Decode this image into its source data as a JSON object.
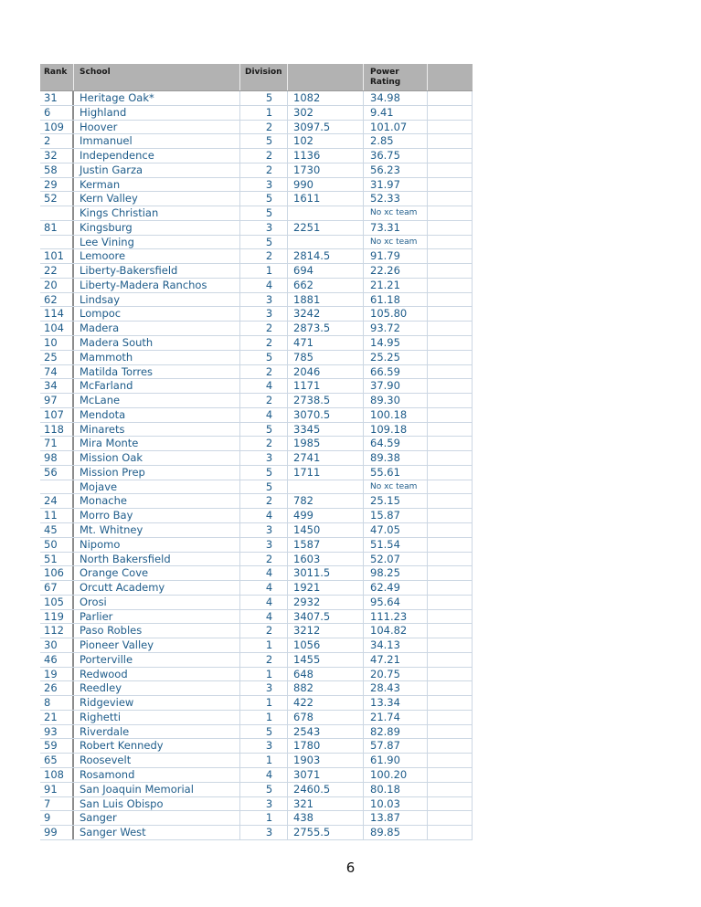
{
  "document": {
    "page_number": "6"
  },
  "colors": {
    "header_bg": "#b2b2b2",
    "header_text": "#1a1a1a",
    "data_text": "#1e5c8a",
    "grid_line": "#ccd7e3",
    "rank_divider": "#8c8c8c"
  },
  "table": {
    "headers": {
      "rank": "Rank",
      "school": "School",
      "division": "Division",
      "points": "",
      "power_rating": "Power Rating",
      "extra": ""
    },
    "no_team_text": "No xc team",
    "rows": [
      {
        "rank": "31",
        "school": "Heritage Oak*",
        "division": "5",
        "points": "1082",
        "rating": "34.98"
      },
      {
        "rank": "6",
        "school": "Highland",
        "division": "1",
        "points": "302",
        "rating": "9.41"
      },
      {
        "rank": "109",
        "school": "Hoover",
        "division": "2",
        "points": "3097.5",
        "rating": "101.07"
      },
      {
        "rank": "2",
        "school": "Immanuel",
        "division": "5",
        "points": "102",
        "rating": "2.85"
      },
      {
        "rank": "32",
        "school": "Independence",
        "division": "2",
        "points": "1136",
        "rating": "36.75"
      },
      {
        "rank": "58",
        "school": "Justin Garza",
        "division": "2",
        "points": "1730",
        "rating": "56.23"
      },
      {
        "rank": "29",
        "school": "Kerman",
        "division": "3",
        "points": "990",
        "rating": "31.97"
      },
      {
        "rank": "52",
        "school": "Kern Valley",
        "division": "5",
        "points": "1611",
        "rating": "52.33"
      },
      {
        "rank": "",
        "school": "Kings Christian",
        "division": "5",
        "points": "",
        "rating": "No xc team"
      },
      {
        "rank": "81",
        "school": "Kingsburg",
        "division": "3",
        "points": "2251",
        "rating": "73.31"
      },
      {
        "rank": "",
        "school": "Lee Vining",
        "division": "5",
        "points": "",
        "rating": "No xc team"
      },
      {
        "rank": "101",
        "school": "Lemoore",
        "division": "2",
        "points": "2814.5",
        "rating": "91.79"
      },
      {
        "rank": "22",
        "school": "Liberty-Bakersfield",
        "division": "1",
        "points": "694",
        "rating": "22.26"
      },
      {
        "rank": "20",
        "school": "Liberty-Madera Ranchos",
        "division": "4",
        "points": "662",
        "rating": "21.21"
      },
      {
        "rank": "62",
        "school": "Lindsay",
        "division": "3",
        "points": "1881",
        "rating": "61.18"
      },
      {
        "rank": "114",
        "school": "Lompoc",
        "division": "3",
        "points": "3242",
        "rating": "105.80"
      },
      {
        "rank": "104",
        "school": "Madera",
        "division": "2",
        "points": "2873.5",
        "rating": "93.72"
      },
      {
        "rank": "10",
        "school": "Madera South",
        "division": "2",
        "points": "471",
        "rating": "14.95"
      },
      {
        "rank": "25",
        "school": "Mammoth",
        "division": "5",
        "points": "785",
        "rating": "25.25"
      },
      {
        "rank": "74",
        "school": "Matilda Torres",
        "division": "2",
        "points": "2046",
        "rating": "66.59"
      },
      {
        "rank": "34",
        "school": "McFarland",
        "division": "4",
        "points": "1171",
        "rating": "37.90"
      },
      {
        "rank": "97",
        "school": "McLane",
        "division": "2",
        "points": "2738.5",
        "rating": "89.30"
      },
      {
        "rank": "107",
        "school": "Mendota",
        "division": "4",
        "points": "3070.5",
        "rating": "100.18"
      },
      {
        "rank": "118",
        "school": "Minarets",
        "division": "5",
        "points": "3345",
        "rating": "109.18"
      },
      {
        "rank": "71",
        "school": "Mira Monte",
        "division": "2",
        "points": "1985",
        "rating": "64.59"
      },
      {
        "rank": "98",
        "school": "Mission Oak",
        "division": "3",
        "points": "2741",
        "rating": "89.38"
      },
      {
        "rank": "56",
        "school": "Mission Prep",
        "division": "5",
        "points": "1711",
        "rating": "55.61"
      },
      {
        "rank": "",
        "school": "Mojave",
        "division": "5",
        "points": "",
        "rating": "No xc team"
      },
      {
        "rank": "24",
        "school": "Monache",
        "division": "2",
        "points": "782",
        "rating": "25.15"
      },
      {
        "rank": "11",
        "school": "Morro Bay",
        "division": "4",
        "points": "499",
        "rating": "15.87"
      },
      {
        "rank": "45",
        "school": "Mt. Whitney",
        "division": "3",
        "points": "1450",
        "rating": "47.05"
      },
      {
        "rank": "50",
        "school": "Nipomo",
        "division": "3",
        "points": "1587",
        "rating": "51.54"
      },
      {
        "rank": "51",
        "school": "North Bakersfield",
        "division": "2",
        "points": "1603",
        "rating": "52.07"
      },
      {
        "rank": "106",
        "school": "Orange Cove",
        "division": "4",
        "points": "3011.5",
        "rating": "98.25"
      },
      {
        "rank": "67",
        "school": "Orcutt Academy",
        "division": "4",
        "points": "1921",
        "rating": "62.49"
      },
      {
        "rank": "105",
        "school": "Orosi",
        "division": "4",
        "points": "2932",
        "rating": "95.64"
      },
      {
        "rank": "119",
        "school": "Parlier",
        "division": "4",
        "points": "3407.5",
        "rating": "111.23"
      },
      {
        "rank": "112",
        "school": "Paso Robles",
        "division": "2",
        "points": "3212",
        "rating": "104.82"
      },
      {
        "rank": "30",
        "school": "Pioneer Valley",
        "division": "1",
        "points": "1056",
        "rating": "34.13"
      },
      {
        "rank": "46",
        "school": "Porterville",
        "division": "2",
        "points": "1455",
        "rating": "47.21"
      },
      {
        "rank": "19",
        "school": "Redwood",
        "division": "1",
        "points": "648",
        "rating": "20.75"
      },
      {
        "rank": "26",
        "school": "Reedley",
        "division": "3",
        "points": "882",
        "rating": "28.43"
      },
      {
        "rank": "8",
        "school": "Ridgeview",
        "division": "1",
        "points": "422",
        "rating": "13.34"
      },
      {
        "rank": "21",
        "school": "Righetti",
        "division": "1",
        "points": "678",
        "rating": "21.74"
      },
      {
        "rank": "93",
        "school": "Riverdale",
        "division": "5",
        "points": "2543",
        "rating": "82.89"
      },
      {
        "rank": "59",
        "school": "Robert Kennedy",
        "division": "3",
        "points": "1780",
        "rating": "57.87"
      },
      {
        "rank": "65",
        "school": "Roosevelt",
        "division": "1",
        "points": "1903",
        "rating": "61.90"
      },
      {
        "rank": "108",
        "school": "Rosamond",
        "division": "4",
        "points": "3071",
        "rating": "100.20"
      },
      {
        "rank": "91",
        "school": "San Joaquin Memorial",
        "division": "5",
        "points": "2460.5",
        "rating": "80.18"
      },
      {
        "rank": "7",
        "school": "San Luis Obispo",
        "division": "3",
        "points": "321",
        "rating": "10.03"
      },
      {
        "rank": "9",
        "school": "Sanger",
        "division": "1",
        "points": "438",
        "rating": "13.87"
      },
      {
        "rank": "99",
        "school": "Sanger West",
        "division": "3",
        "points": "2755.5",
        "rating": "89.85"
      }
    ]
  }
}
